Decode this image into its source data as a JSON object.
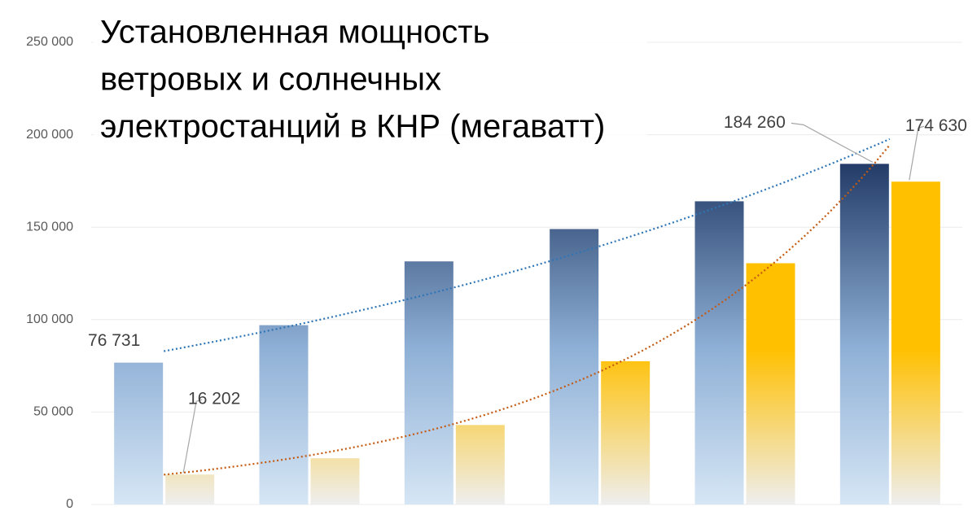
{
  "chart_data": {
    "type": "bar",
    "title": [
      "Установленная мощность",
      "ветровых и солнечных",
      "электростанций в КНР (мегаватт)"
    ],
    "categories": [
      null,
      null,
      null,
      null,
      null,
      null
    ],
    "series": [
      {
        "color": "#1f3864",
        "color_end": "#d6e6f5",
        "trendline": true,
        "trend_color": "#2e75b6",
        "values": [
          76731,
          97000,
          131500,
          149000,
          164000,
          184260
        ],
        "value_labels": [
          "76 731",
          null,
          null,
          null,
          null,
          "184 260"
        ]
      },
      {
        "color": "#ffc000",
        "color_end": "#eeeeee",
        "trendline": true,
        "trend_color": "#c55a11",
        "values": [
          16202,
          25000,
          43000,
          77500,
          130500,
          174630
        ],
        "value_labels": [
          "16 202",
          null,
          null,
          null,
          null,
          "174 630"
        ]
      }
    ],
    "ylim": [
      0,
      250000
    ],
    "yticks": [
      {
        "value": 0,
        "label": "0"
      },
      {
        "value": 50000,
        "label": "50 000"
      },
      {
        "value": 100000,
        "label": "100 000"
      },
      {
        "value": 150000,
        "label": "150 000"
      },
      {
        "value": 200000,
        "label": "200 000"
      },
      {
        "value": 250000,
        "label": "250 000"
      }
    ],
    "grid": true
  }
}
